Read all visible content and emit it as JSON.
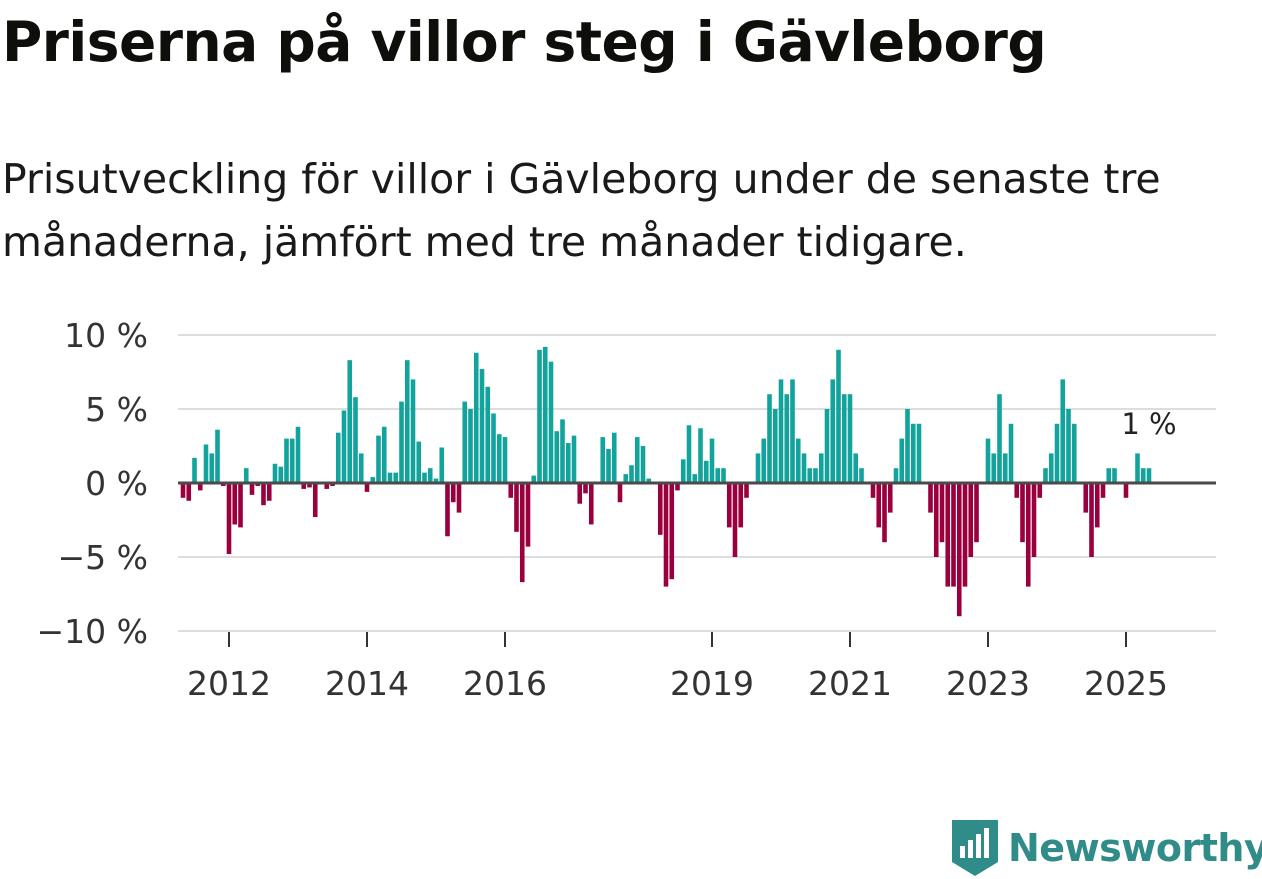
{
  "title": "Priserna på villor steg i Gävleborg",
  "subtitle": "Prisutveckling för villor i Gävleborg under de senaste tre månaderna, jämfört med tre månader tidigare.",
  "brand": {
    "name": "Newsworthy",
    "icon": "newsworthy-logo-icon"
  },
  "colors": {
    "positive": "#11a39c",
    "negative": "#99003d",
    "grid": "#dddddd",
    "zero_line": "#4a4a4a",
    "text": "#333333",
    "brand": "#2f8c88"
  },
  "chart_data": {
    "type": "bar",
    "title": "Priserna på villor steg i Gävleborg",
    "xlabel": "",
    "ylabel": "",
    "unit": "%",
    "ylim": [
      -10,
      10
    ],
    "y_ticks": [
      {
        "value": 10,
        "label": "10 %"
      },
      {
        "value": 5,
        "label": "5 %"
      },
      {
        "value": 0,
        "label": "0 %"
      },
      {
        "value": -5,
        "label": "−5 %"
      },
      {
        "value": -10,
        "label": "−10 %"
      }
    ],
    "x_ticks": [
      {
        "year": 2012,
        "label": "2012"
      },
      {
        "year": 2014,
        "label": "2014"
      },
      {
        "year": 2016,
        "label": "2016"
      },
      {
        "year": 2019,
        "label": "2019"
      },
      {
        "year": 2021,
        "label": "2021"
      },
      {
        "year": 2023,
        "label": "2023"
      },
      {
        "year": 2025,
        "label": "2025"
      }
    ],
    "start": "2011-05",
    "annotation": {
      "label": "1 %",
      "value": 1
    },
    "values": [
      -1.0,
      -1.2,
      1.7,
      -0.5,
      2.6,
      2.0,
      3.6,
      -0.2,
      -4.8,
      -2.8,
      -3.0,
      1.0,
      -0.8,
      -0.2,
      -1.5,
      -1.2,
      1.3,
      1.1,
      3.0,
      3.0,
      3.8,
      -0.4,
      -0.3,
      -2.3,
      0.0,
      -0.4,
      -0.2,
      3.4,
      4.9,
      8.3,
      5.8,
      2.0,
      -0.6,
      0.4,
      3.2,
      3.8,
      0.7,
      0.7,
      5.5,
      8.3,
      7.0,
      2.8,
      0.7,
      1.0,
      0.3,
      2.4,
      -3.6,
      -1.3,
      -2.0,
      5.5,
      5.0,
      8.8,
      7.7,
      6.5,
      4.7,
      3.3,
      3.1,
      -1.0,
      -3.3,
      -6.7,
      -4.3,
      0.5,
      9.0,
      9.2,
      8.2,
      3.5,
      4.3,
      2.7,
      3.2,
      -1.4,
      -0.7,
      -2.8,
      0.0,
      3.1,
      2.3,
      3.4,
      -1.3,
      0.6,
      1.2,
      3.1,
      2.5,
      0.3,
      0.0,
      -3.5,
      -7.0,
      -6.5,
      -0.5,
      1.6,
      3.9,
      0.6,
      3.7,
      1.5,
      3.0,
      1.0,
      1.0,
      -3.0,
      -5.0,
      -3.0,
      -1.0,
      0.0,
      2.0,
      3.0,
      6.0,
      5.0,
      7.0,
      6.0,
      7.0,
      3.0,
      2.0,
      1.0,
      1.0,
      2.0,
      5.0,
      7.0,
      9.0,
      6.0,
      6.0,
      2.0,
      1.0,
      0.0,
      -1.0,
      -3.0,
      -4.0,
      -2.0,
      1.0,
      3.0,
      5.0,
      4.0,
      4.0,
      0.0,
      -2.0,
      -5.0,
      -4.0,
      -7.0,
      -7.0,
      -9.0,
      -7.0,
      -5.0,
      -4.0,
      0.0,
      3.0,
      2.0,
      6.0,
      2.0,
      4.0,
      -1.0,
      -4.0,
      -7.0,
      -5.0,
      -1.0,
      1.0,
      2.0,
      4.0,
      7.0,
      5.0,
      4.0,
      0.0,
      -2.0,
      -5.0,
      -3.0,
      -1.0,
      1.0,
      1.0,
      0.0,
      -1.0,
      0.0,
      2.0,
      1.0,
      1.0
    ]
  }
}
